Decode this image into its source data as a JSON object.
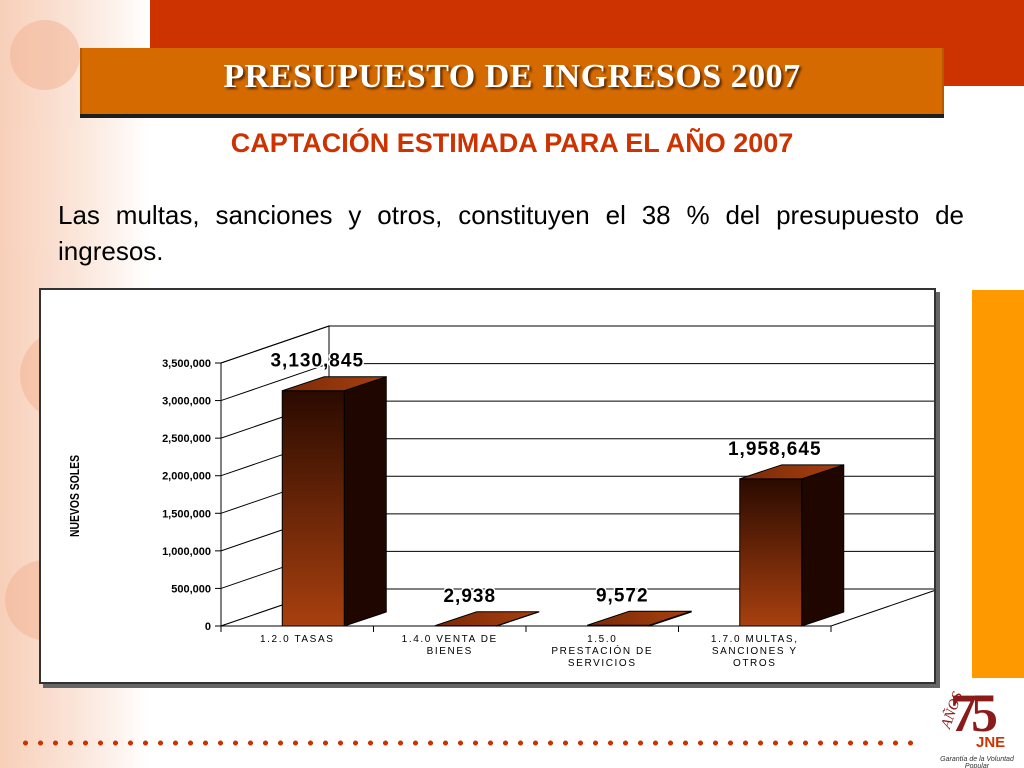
{
  "slide": {
    "title": "PRESUPUESTO DE INGRESOS 2007",
    "subtitle": "CAPTACIÓN ESTIMADA PARA EL AÑO 2007",
    "paragraph": "Las multas, sanciones y otros, constituyen el 38 % del presupuesto de ingresos."
  },
  "logo": {
    "number": "75",
    "anos": "AÑOS",
    "brand": "JNE",
    "tagline": "Garantía de la Voluntad Popular"
  },
  "colors": {
    "accent_red": "#cc3300",
    "title_orange": "#d46a00",
    "side_orange": "#ff9900",
    "bar_light": "#a8400f",
    "bar_dark": "#2a0a00",
    "bar_side": "#1f0700",
    "bar_top": "#7a2a08"
  },
  "chart_data": {
    "type": "bar",
    "ylabel": "NUEVOS SOLES",
    "xlabel": "",
    "ylim": [
      0,
      3500000
    ],
    "yticks": [
      0,
      500000,
      1000000,
      1500000,
      2000000,
      2500000,
      3000000,
      3500000
    ],
    "ytick_labels": [
      "0",
      "500,000",
      "1,000,000",
      "1,500,000",
      "2,000,000",
      "2,500,000",
      "3,000,000",
      "3,500,000"
    ],
    "categories": [
      [
        "1.2.0 TASAS"
      ],
      [
        "1.4.0 VENTA DE",
        "BIENES"
      ],
      [
        "1.5.0",
        "PRESTACIÓN DE",
        "SERVICIOS"
      ],
      [
        "1.7.0 MULTAS,",
        "SANCIONES Y",
        "OTROS"
      ]
    ],
    "values": [
      3130845,
      2938,
      9572,
      1958645
    ],
    "value_labels": [
      "3,130,845",
      "2,938",
      "9,572",
      "1,958,645"
    ],
    "grid": true,
    "style": "3d"
  }
}
